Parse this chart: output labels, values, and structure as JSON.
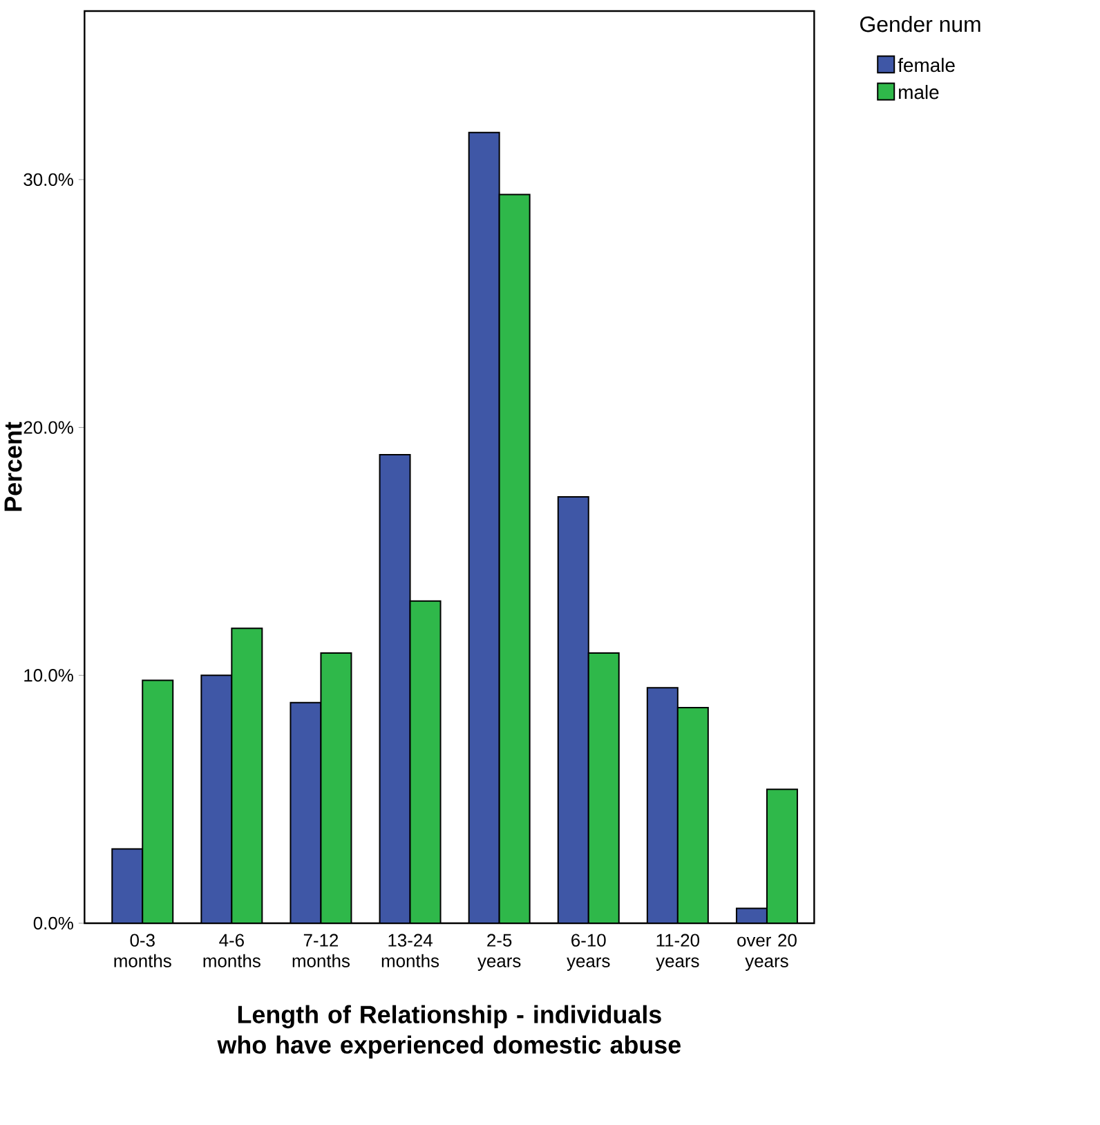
{
  "chart_data": {
    "type": "bar",
    "xlabel": "Length of Relationship - individuals who have experienced domestic abuse",
    "ylabel": "Percent",
    "legend_title": "Gender num",
    "categories": [
      "0-3 months",
      "4-6 months",
      "7-12 months",
      "13-24 months",
      "2-5 years",
      "6-10 years",
      "11-20 years",
      "over 20 years"
    ],
    "series": [
      {
        "name": "female",
        "color": "#3f57a6",
        "values": [
          3.0,
          10.0,
          8.9,
          18.9,
          31.9,
          17.2,
          9.5,
          0.6
        ]
      },
      {
        "name": "male",
        "color": "#2fb84a",
        "values": [
          9.8,
          11.9,
          10.9,
          13.0,
          29.4,
          10.9,
          8.7,
          5.4
        ]
      }
    ],
    "ylim": [
      0,
      36.8
    ],
    "yticks": [
      {
        "value": 0,
        "label": "0.0%"
      },
      {
        "value": 10,
        "label": "10.0%"
      },
      {
        "value": 20,
        "label": "20.0%"
      },
      {
        "value": 30,
        "label": "30.0%"
      }
    ],
    "grid": false,
    "legend": "top right"
  }
}
